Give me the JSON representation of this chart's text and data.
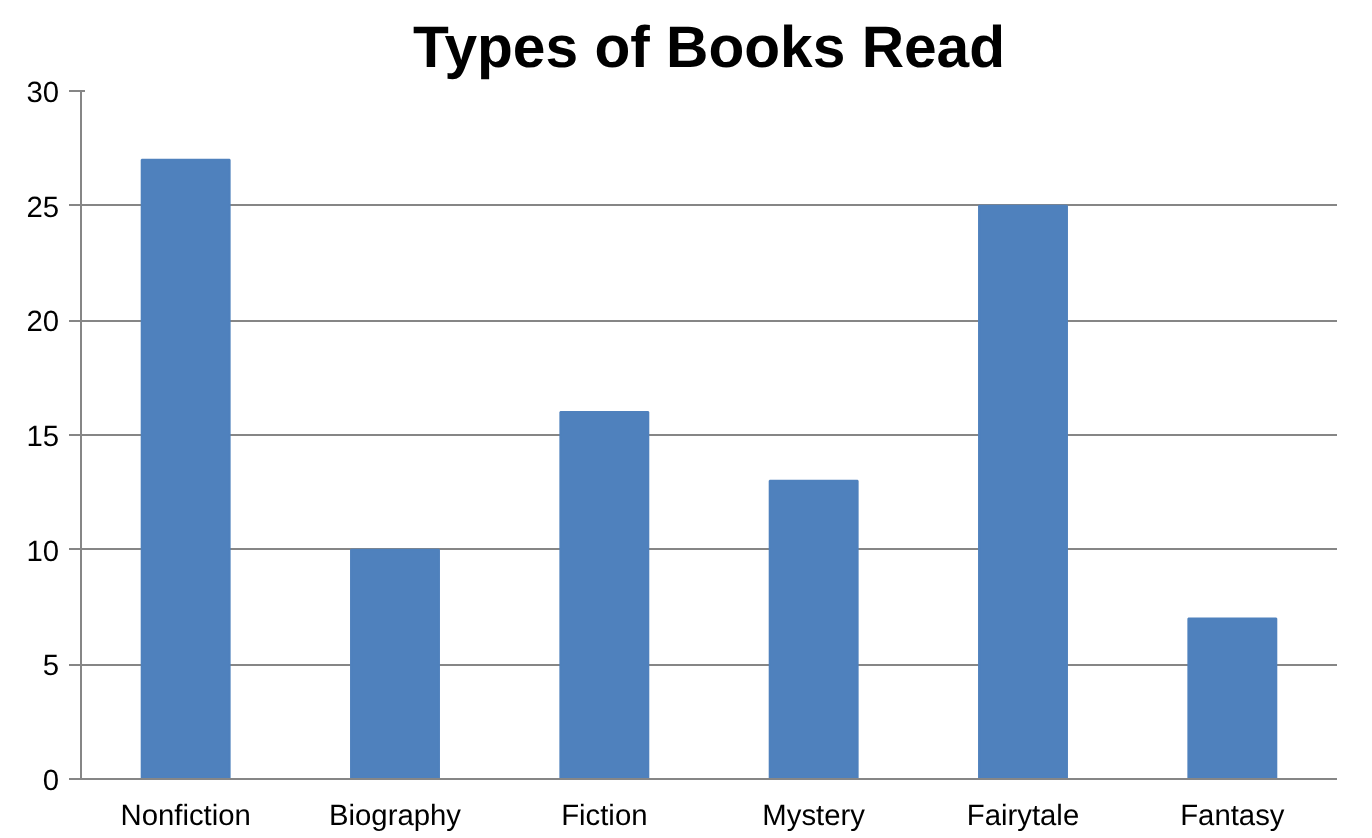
{
  "chart_data": {
    "type": "bar",
    "title": "Types of Books Read",
    "categories": [
      "Nonfiction",
      "Biography",
      "Fiction",
      "Mystery",
      "Fairytale",
      "Fantasy"
    ],
    "values": [
      27,
      10,
      16,
      13,
      25,
      7
    ],
    "color": "#4f81bd",
    "ylim": [
      0,
      30
    ],
    "yticks": [
      0,
      5,
      10,
      15,
      20,
      25,
      30
    ],
    "grid": "y"
  }
}
